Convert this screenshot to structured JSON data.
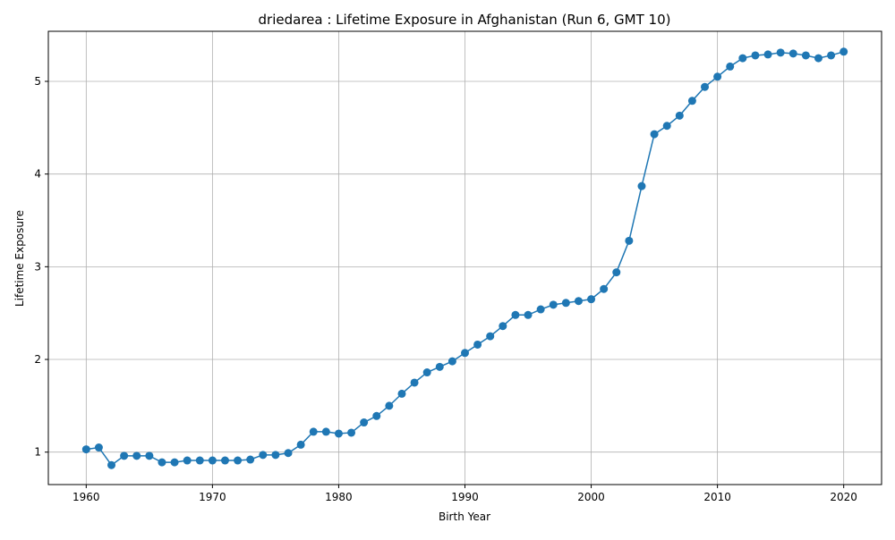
{
  "colors": {
    "series": "#1f77b4",
    "grid": "#b0b0b0",
    "axis": "#000000",
    "background": "#ffffff"
  },
  "chart_data": {
    "type": "line",
    "title": "driedarea : Lifetime Exposure in Afghanistan (Run 6, GMT 10)",
    "xlabel": "Birth Year",
    "ylabel": "Lifetime Exposure",
    "xlim": [
      1957,
      2023
    ],
    "ylim": [
      0.65,
      5.54
    ],
    "xticks": [
      1960,
      1970,
      1980,
      1990,
      2000,
      2010,
      2020
    ],
    "yticks": [
      1,
      2,
      3,
      4,
      5
    ],
    "grid": true,
    "marker": "circle",
    "series": [
      {
        "name": "",
        "x": [
          1960,
          1961,
          1962,
          1963,
          1964,
          1965,
          1966,
          1967,
          1968,
          1969,
          1970,
          1971,
          1972,
          1973,
          1974,
          1975,
          1976,
          1977,
          1978,
          1979,
          1980,
          1981,
          1982,
          1983,
          1984,
          1985,
          1986,
          1987,
          1988,
          1989,
          1990,
          1991,
          1992,
          1993,
          1994,
          1995,
          1996,
          1997,
          1998,
          1999,
          2000,
          2001,
          2002,
          2003,
          2004,
          2005,
          2006,
          2007,
          2008,
          2009,
          2010,
          2011,
          2012,
          2013,
          2014,
          2015,
          2016,
          2017,
          2018,
          2019,
          2020
        ],
        "y": [
          1.03,
          1.05,
          0.86,
          0.96,
          0.96,
          0.96,
          0.89,
          0.89,
          0.91,
          0.91,
          0.91,
          0.91,
          0.91,
          0.92,
          0.97,
          0.97,
          0.99,
          1.08,
          1.22,
          1.22,
          1.2,
          1.21,
          1.32,
          1.39,
          1.5,
          1.63,
          1.75,
          1.86,
          1.92,
          1.98,
          2.07,
          2.16,
          2.25,
          2.36,
          2.48,
          2.48,
          2.54,
          2.59,
          2.61,
          2.63,
          2.65,
          2.76,
          2.94,
          3.28,
          3.87,
          4.43,
          4.52,
          4.63,
          4.79,
          4.94,
          5.05,
          5.16,
          5.25,
          5.28,
          5.29,
          5.31,
          5.3,
          5.28,
          5.25,
          5.28,
          5.32
        ]
      }
    ]
  }
}
